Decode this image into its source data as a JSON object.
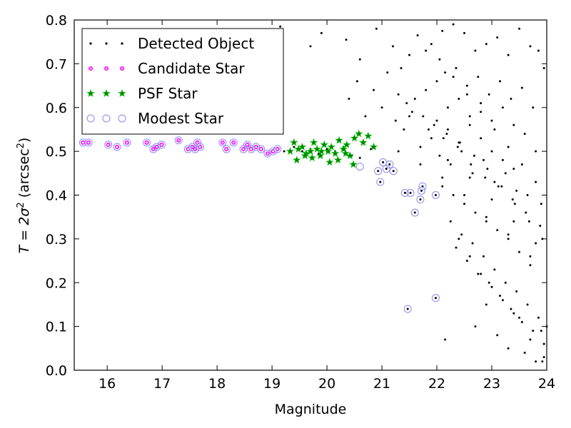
{
  "chart_data": {
    "type": "scatter",
    "xlabel": "Magnitude",
    "ylabel_prefix": "T = 2σ",
    "ylabel_sup": "2",
    "ylabel_mid": " (arcsec",
    "ylabel_sup2": "2",
    "ylabel_suffix": ")",
    "xlim": [
      15.4,
      24.0
    ],
    "ylim": [
      0.0,
      0.8
    ],
    "xticks": [
      16,
      17,
      18,
      19,
      20,
      21,
      22,
      23,
      24
    ],
    "yticks": [
      0.0,
      0.1,
      0.2,
      0.3,
      0.4,
      0.5,
      0.6,
      0.7,
      0.8
    ],
    "grid": false,
    "legend_placement": "top-left",
    "colors": {
      "detected": "#000000",
      "candidate_edge": "#ff00ff",
      "psf_fill": "#008000",
      "psf_edge": "#00bb00",
      "modest_edge": "#8a8af0"
    },
    "series": [
      {
        "name": "Detected Object",
        "marker": "dot",
        "x": [
          15.56,
          15.66,
          16.02,
          16.18,
          16.36,
          16.72,
          16.84,
          16.9,
          16.99,
          17.3,
          17.47,
          17.55,
          17.6,
          17.64,
          17.69,
          18.1,
          18.17,
          18.3,
          18.48,
          18.55,
          18.62,
          18.71,
          18.8,
          18.92,
          19.02,
          19.1,
          19.22,
          19.4,
          19.55,
          19.7,
          19.85,
          20.0,
          20.15,
          20.3,
          20.45,
          20.6,
          20.8,
          20.93,
          20.97,
          21.02,
          21.08,
          21.14,
          21.21,
          21.42,
          21.52,
          21.6,
          21.7,
          21.72,
          21.74,
          21.98,
          21.98,
          21.47,
          19.15,
          19.7,
          19.9,
          20.35,
          20.6,
          20.9,
          21.2,
          21.35,
          21.5,
          21.65,
          21.9,
          22.1,
          22.3,
          22.5,
          22.7,
          22.9,
          23.1,
          23.3,
          23.5,
          23.7,
          23.85,
          23.95,
          22.0,
          22.15,
          22.35,
          22.55,
          22.75,
          22.95,
          23.15,
          23.35,
          23.55,
          23.75,
          22.2,
          22.4,
          22.6,
          22.8,
          23.0,
          23.2,
          23.4,
          23.6,
          23.8,
          21.6,
          21.8,
          22.0,
          22.2,
          22.4,
          22.6,
          22.8,
          23.0,
          23.2,
          23.4,
          21.4,
          21.7,
          22.05,
          22.25,
          22.45,
          22.65,
          22.85,
          23.05,
          23.25,
          23.45,
          23.65,
          23.9,
          20.4,
          20.7,
          21.0,
          21.25,
          21.55,
          21.85,
          22.12,
          22.38,
          22.62,
          22.88,
          23.12,
          23.38,
          23.62,
          23.88,
          20.55,
          20.85,
          21.1,
          21.3,
          21.45,
          21.75,
          21.95,
          22.18,
          22.42,
          22.68,
          22.92,
          23.18,
          23.42,
          23.68,
          23.92,
          22.1,
          22.3,
          22.5,
          22.7,
          22.9,
          23.1,
          23.3,
          23.5,
          23.7,
          22.25,
          22.45,
          22.65,
          22.85,
          23.05,
          23.25,
          23.45,
          23.65,
          23.85,
          22.35,
          22.55,
          22.75,
          22.95,
          23.15,
          23.35,
          23.55,
          23.75,
          23.95,
          21.8,
          22.05,
          22.3,
          22.55,
          22.8,
          23.05,
          23.3,
          23.55,
          23.8,
          21.5,
          21.9,
          22.2,
          22.6,
          23.0,
          23.4,
          23.8,
          21.3,
          21.7,
          22.1,
          22.5,
          22.9,
          23.3,
          23.7,
          22.7,
          22.9,
          23.1,
          23.3,
          23.5,
          23.7,
          23.9,
          23.6,
          23.8,
          23.95,
          24.0,
          23.92,
          22.4,
          22.6,
          22.8,
          23.0,
          23.2,
          23.4,
          22.15
        ],
        "y": [
          0.52,
          0.52,
          0.515,
          0.51,
          0.52,
          0.52,
          0.505,
          0.51,
          0.515,
          0.525,
          0.505,
          0.51,
          0.505,
          0.52,
          0.51,
          0.52,
          0.505,
          0.52,
          0.505,
          0.515,
          0.505,
          0.51,
          0.505,
          0.495,
          0.5,
          0.505,
          0.5,
          0.51,
          0.5,
          0.505,
          0.495,
          0.505,
          0.5,
          0.51,
          0.49,
          0.485,
          0.505,
          0.455,
          0.43,
          0.475,
          0.46,
          0.47,
          0.455,
          0.405,
          0.405,
          0.36,
          0.39,
          0.41,
          0.42,
          0.4,
          0.165,
          0.14,
          0.785,
          0.74,
          0.77,
          0.755,
          0.71,
          0.78,
          0.74,
          0.69,
          0.72,
          0.765,
          0.745,
          0.775,
          0.79,
          0.77,
          0.73,
          0.745,
          0.76,
          0.72,
          0.78,
          0.74,
          0.73,
          0.69,
          0.66,
          0.68,
          0.69,
          0.65,
          0.67,
          0.63,
          0.66,
          0.62,
          0.645,
          0.6,
          0.6,
          0.62,
          0.58,
          0.61,
          0.57,
          0.6,
          0.56,
          0.54,
          0.5,
          0.62,
          0.64,
          0.57,
          0.55,
          0.52,
          0.56,
          0.53,
          0.5,
          0.48,
          0.46,
          0.55,
          0.51,
          0.49,
          0.47,
          0.5,
          0.45,
          0.48,
          0.43,
          0.45,
          0.41,
          0.4,
          0.38,
          0.62,
          0.58,
          0.6,
          0.57,
          0.59,
          0.55,
          0.53,
          0.51,
          0.47,
          0.44,
          0.42,
          0.39,
          0.36,
          0.33,
          0.66,
          0.64,
          0.68,
          0.63,
          0.61,
          0.58,
          0.56,
          0.54,
          0.52,
          0.49,
          0.46,
          0.42,
          0.38,
          0.34,
          0.3,
          0.42,
          0.4,
          0.38,
          0.36,
          0.34,
          0.32,
          0.3,
          0.27,
          0.24,
          0.34,
          0.31,
          0.29,
          0.26,
          0.23,
          0.2,
          0.18,
          0.15,
          0.12,
          0.28,
          0.25,
          0.22,
          0.2,
          0.17,
          0.14,
          0.11,
          0.09,
          0.06,
          0.73,
          0.71,
          0.67,
          0.63,
          0.59,
          0.55,
          0.51,
          0.47,
          0.43,
          0.58,
          0.53,
          0.48,
          0.44,
          0.39,
          0.34,
          0.29,
          0.5,
          0.47,
          0.44,
          0.4,
          0.35,
          0.31,
          0.26,
          0.1,
          0.15,
          0.08,
          0.05,
          0.12,
          0.07,
          0.09,
          0.04,
          0.02,
          0.03,
          0.1,
          0.02,
          0.3,
          0.26,
          0.22,
          0.19,
          0.16,
          0.13,
          0.07
        ]
      },
      {
        "name": "Candidate Star",
        "marker": "small-circle",
        "x": [
          15.56,
          15.66,
          16.02,
          16.18,
          16.36,
          16.72,
          16.84,
          16.9,
          16.99,
          17.3,
          17.47,
          17.55,
          17.6,
          17.64,
          17.69,
          18.1,
          18.17,
          18.3,
          18.48,
          18.55,
          18.62,
          18.71,
          18.8,
          18.92,
          19.02,
          19.1
        ],
        "y": [
          0.52,
          0.52,
          0.515,
          0.51,
          0.52,
          0.52,
          0.505,
          0.51,
          0.515,
          0.525,
          0.505,
          0.51,
          0.505,
          0.52,
          0.51,
          0.52,
          0.505,
          0.52,
          0.505,
          0.515,
          0.505,
          0.51,
          0.505,
          0.495,
          0.5,
          0.505
        ]
      },
      {
        "name": "PSF Star",
        "marker": "star",
        "x": [
          19.33,
          19.4,
          19.48,
          19.55,
          19.62,
          19.7,
          19.76,
          19.82,
          19.88,
          19.95,
          20.02,
          20.08,
          20.15,
          20.22,
          20.3,
          20.36,
          20.42,
          20.5,
          20.58,
          20.66,
          20.75,
          20.85,
          19.45,
          19.6,
          19.73,
          19.9,
          20.05,
          20.2,
          20.34,
          20.48
        ],
        "y": [
          0.5,
          0.52,
          0.505,
          0.51,
          0.495,
          0.5,
          0.52,
          0.505,
          0.49,
          0.515,
          0.5,
          0.51,
          0.495,
          0.525,
          0.505,
          0.515,
          0.49,
          0.53,
          0.54,
          0.52,
          0.535,
          0.51,
          0.48,
          0.49,
          0.485,
          0.5,
          0.475,
          0.48,
          0.495,
          0.47
        ]
      },
      {
        "name": "Modest Star",
        "marker": "open-circle",
        "x": [
          15.56,
          15.66,
          16.02,
          16.18,
          16.36,
          16.72,
          16.84,
          16.9,
          16.99,
          17.3,
          17.47,
          17.55,
          17.6,
          17.64,
          17.69,
          18.1,
          18.17,
          18.3,
          18.48,
          18.55,
          18.62,
          18.71,
          18.8,
          18.92,
          19.02,
          19.1,
          20.6,
          20.93,
          20.97,
          21.02,
          21.08,
          21.14,
          21.21,
          21.42,
          21.52,
          21.6,
          21.7,
          21.72,
          21.74,
          21.98,
          21.98,
          21.47
        ],
        "y": [
          0.52,
          0.52,
          0.515,
          0.51,
          0.52,
          0.52,
          0.505,
          0.51,
          0.515,
          0.525,
          0.505,
          0.51,
          0.505,
          0.52,
          0.51,
          0.52,
          0.505,
          0.52,
          0.505,
          0.515,
          0.505,
          0.51,
          0.505,
          0.495,
          0.5,
          0.505,
          0.465,
          0.455,
          0.43,
          0.475,
          0.46,
          0.47,
          0.455,
          0.405,
          0.405,
          0.36,
          0.39,
          0.41,
          0.42,
          0.4,
          0.165,
          0.14
        ]
      }
    ]
  }
}
